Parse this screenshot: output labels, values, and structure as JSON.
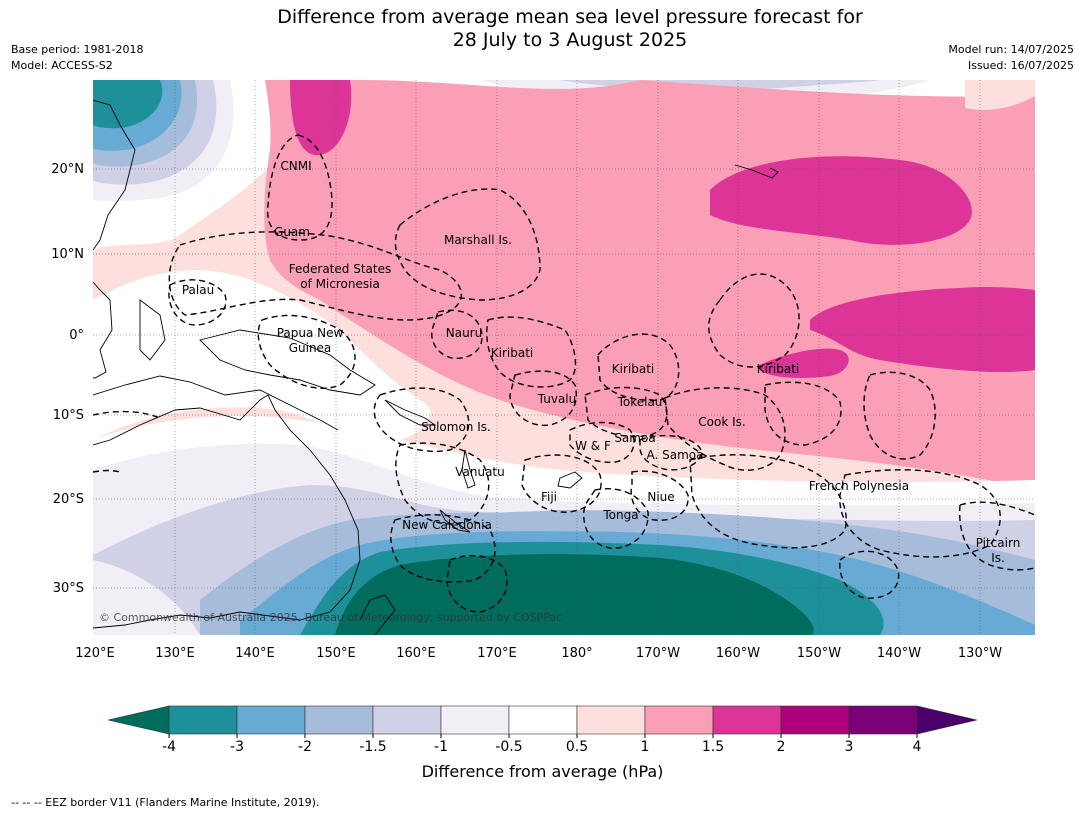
{
  "title": {
    "line1": "Difference from average mean sea level pressure forecast for",
    "line2": "28 July to 3 August 2025"
  },
  "meta": {
    "base_period": "Base period: 1981-2018",
    "model": "Model: ACCESS-S2",
    "model_run": "Model run: 14/07/2025",
    "issued": "Issued: 16/07/2025"
  },
  "axes": {
    "lat_labels": [
      "20°N",
      "10°N",
      "0°",
      "10°S",
      "20°S",
      "30°S"
    ],
    "lon_labels": [
      "120°E",
      "130°E",
      "140°E",
      "150°E",
      "160°E",
      "170°E",
      "180°",
      "170°W",
      "160°W",
      "150°W",
      "140°W",
      "130°W"
    ]
  },
  "places": [
    "CNMI",
    "Guam",
    "Marshall Is.",
    "Federated States",
    "of Micronesia",
    "Palau",
    "Papua New",
    "Guinea",
    "Nauru",
    "Kiribati",
    "Kiribati",
    "Kiribati",
    "Tuvalu",
    "Tokelau",
    "Solomon Is.",
    "Cook Is.",
    "Samoa",
    "W & F",
    "A. Samoa",
    "Vanuatu",
    "Fiji",
    "Niue",
    "Tonga",
    "French Polynesia",
    "New Caledonia",
    "Pitcairn",
    "Is."
  ],
  "credit": "© Commonwealth of Australia 2025, Bureau of Meteorology, supported by COSPPac",
  "colorbar": {
    "ticks": [
      "-4",
      "-3",
      "-2",
      "-1.5",
      "-1",
      "-0.5",
      "0.5",
      "1",
      "1.5",
      "2",
      "3",
      "4"
    ],
    "colors": [
      "#006c5e",
      "#1d9099",
      "#67aad3",
      "#a6bcdb",
      "#d0d1e6",
      "#f1eef6",
      "#ffffff",
      "#fde0dd",
      "#fa9fb5",
      "#dd3497",
      "#ae017e",
      "#7a0177",
      "#49006a"
    ],
    "label": "Difference from average (hPa)"
  },
  "footer": "--  --  -- EEZ border V11 (Flanders Marine Institute, 2019)."
}
